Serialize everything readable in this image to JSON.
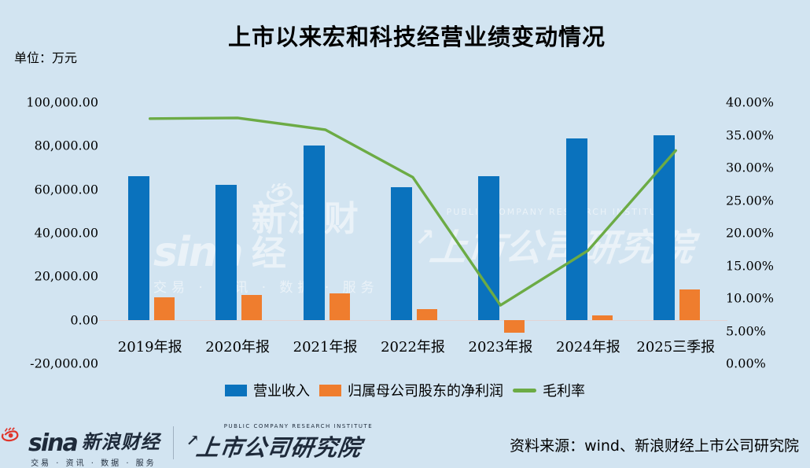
{
  "title": "上市以来宏和科技经营业绩变动情况",
  "unit_label": "单位：万元",
  "source_note": "资料来源：wind、新浪财经上市公司研究院",
  "colors": {
    "background": "#d2e4f1",
    "revenue_bar": "#0a72bd",
    "profit_bar": "#ef7d2e",
    "margin_line": "#6cab45",
    "zero_line": "#e3d4d4",
    "footer_logo": "#1e2a3a",
    "sina_red": "#e0352b"
  },
  "watermark": {
    "sina_word": "sina",
    "sina_brand": "新浪财经",
    "sina_tagline": "交易 · 资讯 · 数据 · 服务",
    "institute_en": "PUBLIC COMPANY RESEARCH INSTITUTE",
    "institute": "上市公司研究院",
    "arrow": "↗"
  },
  "footer": {
    "sina_word": "sina",
    "sina_brand": "新浪财经",
    "sina_tagline": "交易 · 资讯 · 数据 · 服务",
    "institute_en": "PUBLIC COMPANY RESEARCH INSTITUTE",
    "institute": "上市公司研究院",
    "arrow": "↗"
  },
  "chart_data": {
    "type": "bar",
    "subtype": "bar+line combo, dual axis",
    "title": "上市以来宏和科技经营业绩变动情况",
    "categories": [
      "2019年报",
      "2020年报",
      "2021年报",
      "2022年报",
      "2023年报",
      "2024年报",
      "2025三季报"
    ],
    "series": [
      {
        "name": "营业收入",
        "type": "bar",
        "axis": "left",
        "color": "#0a72bd",
        "values": [
          66000,
          62000,
          80200,
          61000,
          66000,
          83500,
          85000
        ]
      },
      {
        "name": "归属母公司股东的净利润",
        "type": "bar",
        "axis": "left",
        "color": "#ef7d2e",
        "values": [
          10500,
          11600,
          12300,
          5000,
          -6000,
          2200,
          14000
        ]
      },
      {
        "name": "毛利率",
        "type": "line",
        "axis": "right",
        "color": "#6cab45",
        "values": [
          37.5,
          37.6,
          35.8,
          28.5,
          8.9,
          17.3,
          32.6
        ]
      }
    ],
    "left_axis": {
      "unit": "万元",
      "min": -20000,
      "max": 100000,
      "step": 20000,
      "tick_labels": [
        "100,000.00",
        "80,000.00",
        "60,000.00",
        "40,000.00",
        "20,000.00",
        "0.00",
        "-20,000.00"
      ]
    },
    "right_axis": {
      "unit": "%",
      "min": 0,
      "max": 40,
      "step": 5,
      "tick_labels": [
        "40.00%",
        "35.00%",
        "30.00%",
        "25.00%",
        "20.00%",
        "15.00%",
        "10.00%",
        "5.00%",
        "0.00%"
      ]
    },
    "grid": false,
    "legend_position": "bottom"
  }
}
